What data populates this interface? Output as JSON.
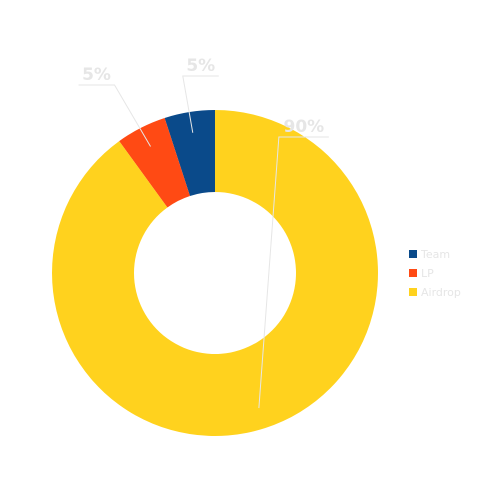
{
  "chart_data": {
    "type": "pie",
    "donut": true,
    "categories": [
      "Team",
      "LP",
      "Airdrop"
    ],
    "values": [
      5,
      5,
      90
    ],
    "data_labels": [
      "5%",
      "5%",
      "90%"
    ],
    "colors": [
      "#0a4a8a",
      "#ff4a14",
      "#ffd21e"
    ],
    "legend_position": "right",
    "title": ""
  }
}
